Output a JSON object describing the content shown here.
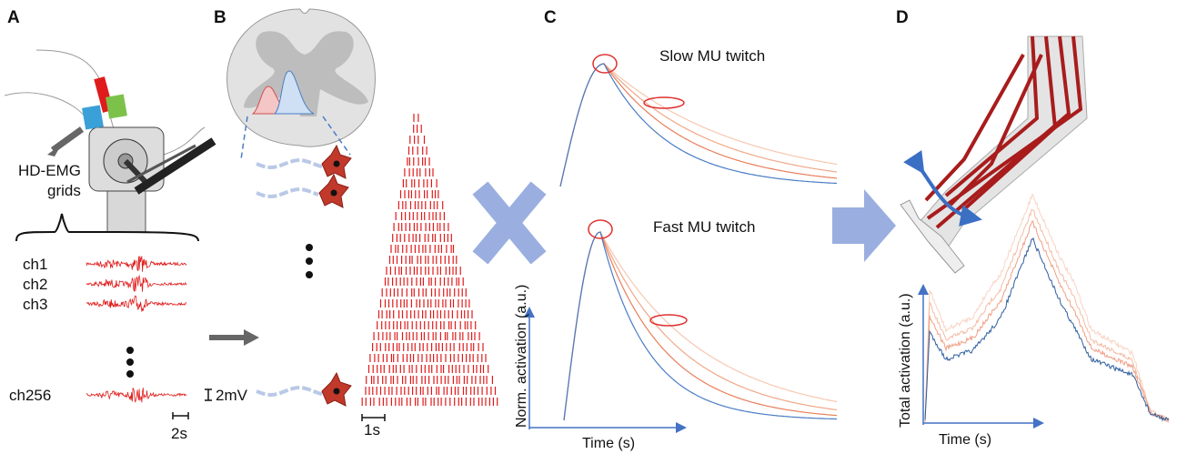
{
  "panels": [
    {
      "label": "A",
      "grid_label": [
        "HD-EMG",
        "grids"
      ],
      "channels": [
        "ch1",
        "ch2",
        "ch3",
        "ch256"
      ],
      "amplitude_bar": "2mV",
      "time_bar": "2s"
    },
    {
      "label": "B",
      "time_bar": "1s"
    },
    {
      "label": "C",
      "subplots": [
        {
          "title": "Slow MU twitch"
        },
        {
          "title": "Fast MU twitch",
          "y_label": "Norm. activation (a.u.)",
          "x_label": "Time (s)"
        }
      ]
    },
    {
      "label": "D",
      "y_label": "Total  activation (a.u.)",
      "x_label": "Time (s)"
    }
  ]
}
